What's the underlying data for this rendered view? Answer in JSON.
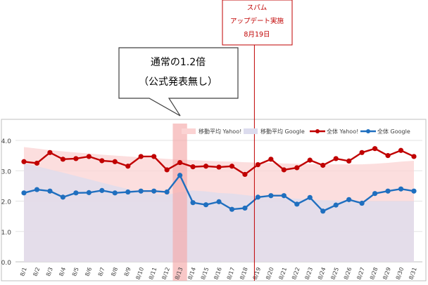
{
  "chart_data": {
    "type": "line",
    "categories": [
      "8/1",
      "8/2",
      "8/3",
      "8/4",
      "8/5",
      "8/6",
      "8/7",
      "8/8",
      "8/9",
      "8/10",
      "8/11",
      "8/12",
      "8/13",
      "8/14",
      "8/15",
      "8/16",
      "8/17",
      "8/18",
      "8/19",
      "8/20",
      "8/21",
      "8/22",
      "8/23",
      "8/24",
      "8/25",
      "8/26",
      "8/27",
      "8/28",
      "8/29",
      "8/30",
      "8/31"
    ],
    "ylim": [
      0,
      4
    ],
    "yticks": [
      "0.0",
      "1.0",
      "2.0",
      "3.0",
      "4.0"
    ],
    "series": [
      {
        "name": "移動平均 Yahoo!",
        "kind": "area",
        "color": "#fbd3d3",
        "values": [
          3.78,
          3.73,
          3.68,
          3.64,
          3.6,
          3.57,
          3.53,
          3.5,
          3.47,
          3.44,
          3.42,
          3.39,
          3.37,
          3.35,
          3.33,
          3.31,
          3.3,
          3.28,
          3.27,
          3.26,
          3.24,
          3.23,
          3.22,
          3.21,
          3.21,
          3.21,
          3.21,
          3.23,
          3.26,
          3.3,
          3.33
        ]
      },
      {
        "name": "移動平均 Google",
        "kind": "area",
        "color": "#dcdcee",
        "values": [
          3.25,
          3.15,
          3.04,
          2.94,
          2.83,
          2.72,
          2.61,
          2.5,
          2.4,
          2.3,
          2.25,
          2.2,
          2.3,
          2.35,
          2.32,
          2.27,
          2.25,
          2.2,
          2.15,
          2.13,
          2.1,
          2.08,
          2.05,
          2.03,
          2.02,
          2.0,
          2.0,
          2.0,
          2.0,
          2.0,
          2.0
        ]
      },
      {
        "name": "全体 Yahoo!",
        "kind": "line",
        "color": "#c00000",
        "values": [
          3.3,
          3.25,
          3.6,
          3.38,
          3.4,
          3.47,
          3.33,
          3.3,
          3.15,
          3.47,
          3.47,
          3.03,
          3.27,
          3.13,
          3.15,
          3.12,
          3.15,
          2.88,
          3.2,
          3.38,
          3.03,
          3.1,
          3.35,
          3.18,
          3.4,
          3.32,
          3.6,
          3.73,
          3.5,
          3.67,
          3.47
        ]
      },
      {
        "name": "全体 Google",
        "kind": "line",
        "color": "#1f6fbf",
        "values": [
          2.27,
          2.38,
          2.33,
          2.13,
          2.27,
          2.28,
          2.35,
          2.27,
          2.3,
          2.33,
          2.33,
          2.3,
          2.85,
          1.95,
          1.88,
          1.98,
          1.73,
          1.77,
          2.13,
          2.18,
          2.18,
          1.9,
          2.12,
          1.67,
          1.87,
          2.05,
          1.93,
          2.25,
          2.33,
          2.4,
          2.33
        ]
      }
    ],
    "highlight": {
      "category": "8/13",
      "color": "#f4a9a9"
    },
    "marker_line": {
      "category": "8/19",
      "color": "#c00000"
    },
    "annotations": {
      "callout_lines": [
        "通常の1.2倍",
        "（公式発表無し）"
      ],
      "update_lines": [
        "スパム",
        "アップデート実施",
        "8月19日"
      ]
    },
    "grid": true,
    "legend_position": "top"
  }
}
